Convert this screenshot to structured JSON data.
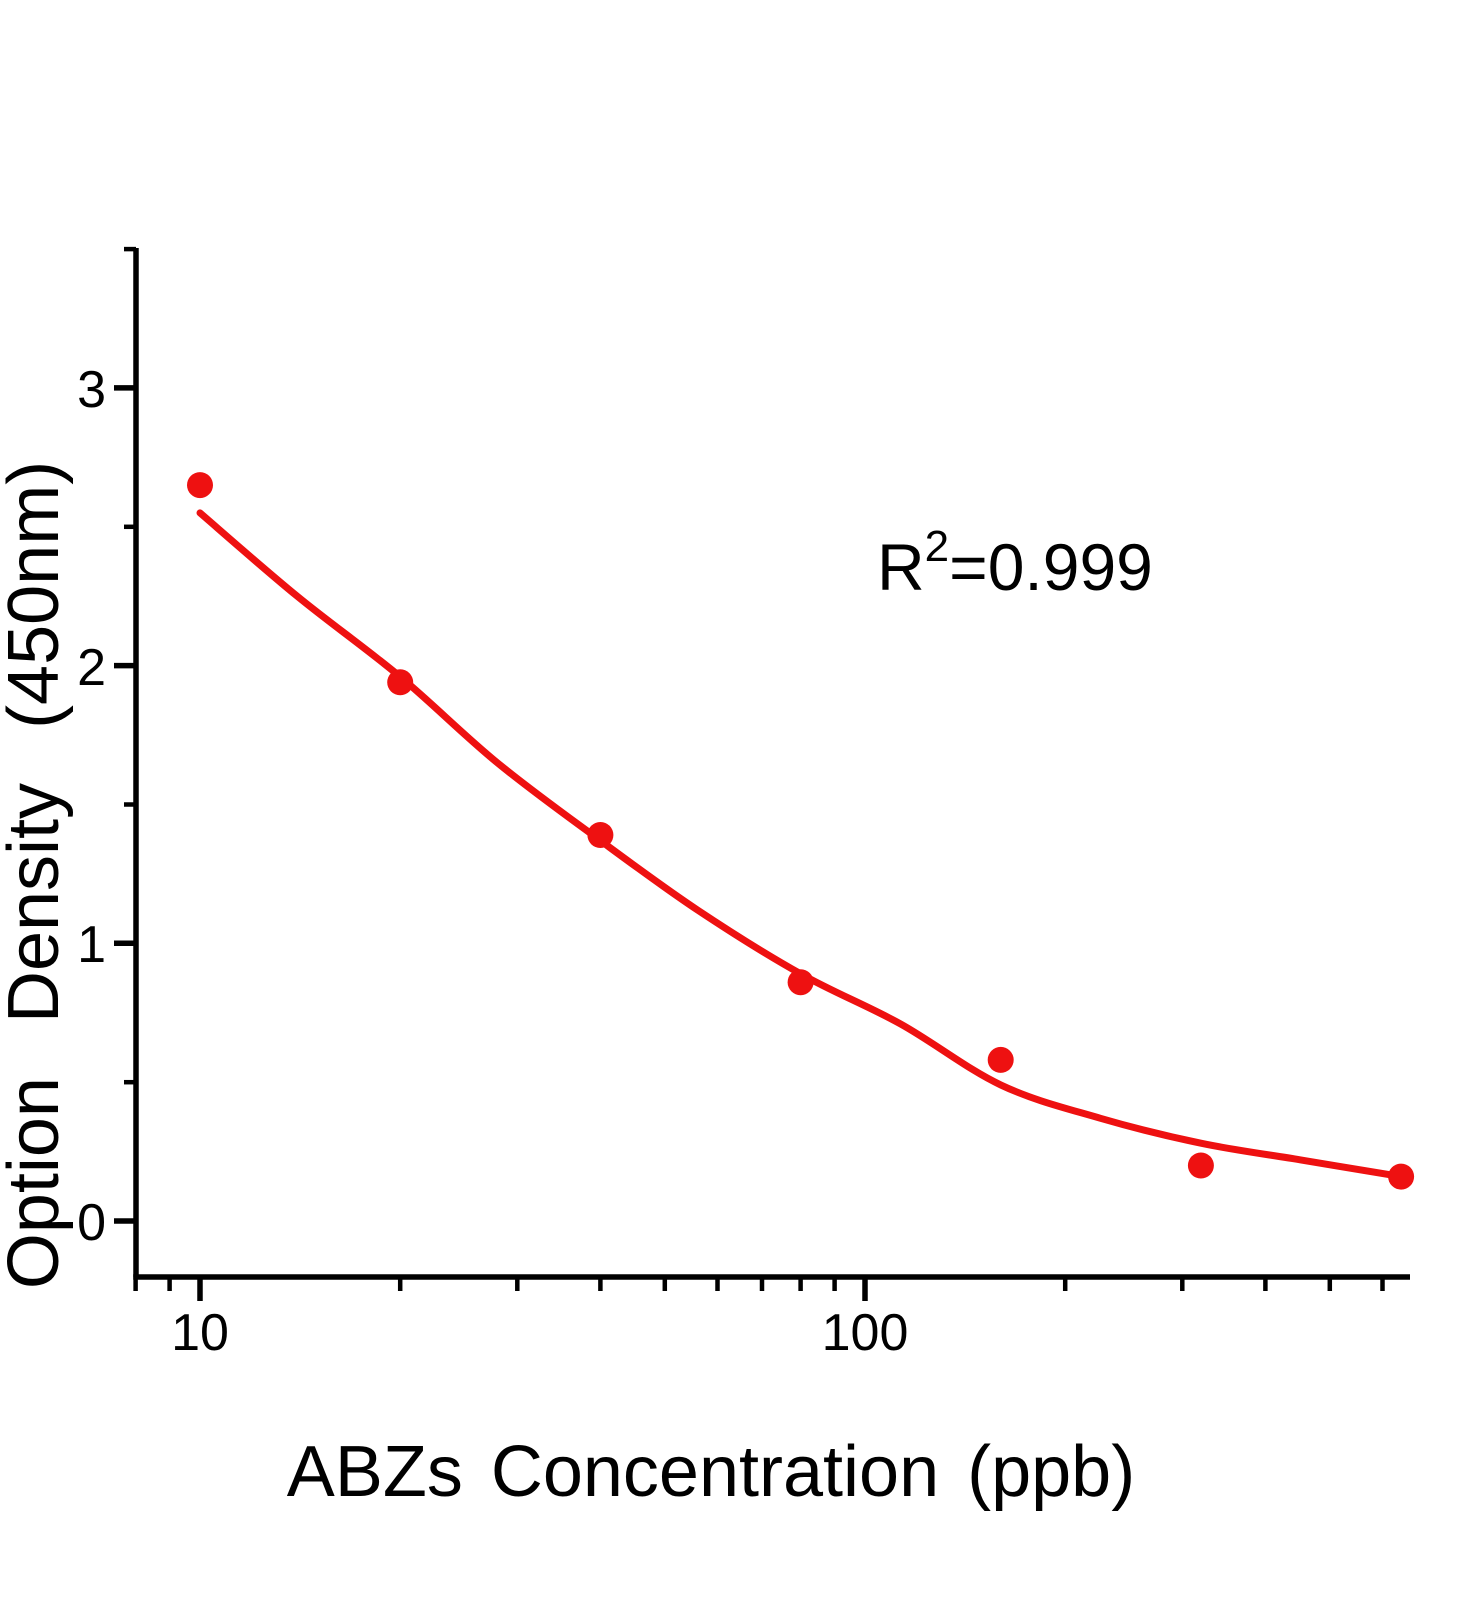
{
  "chart_data": {
    "type": "scatter",
    "title": "",
    "xlabel": "ABZs Concentration (ppb)",
    "ylabel": "Option Density (450nm)",
    "annotation": {
      "text": "R²=0.999",
      "base": "R",
      "sup": "2",
      "rest": "=0.999"
    },
    "xscale": "log",
    "xlim": [
      8,
      660
    ],
    "ylim": [
      -0.2,
      3.5
    ],
    "grid": false,
    "legend": "none",
    "marker_color": "#ee1111",
    "line_color": "#ee1111",
    "axis_color": "#000000",
    "background_color": "#ffffff",
    "x": [
      10,
      20,
      40,
      80,
      160,
      320,
      640
    ],
    "y": [
      2.65,
      1.94,
      1.39,
      0.86,
      0.58,
      0.2,
      0.16
    ],
    "fit_curve": {
      "x": [
        10,
        14,
        20,
        28,
        40,
        56,
        80,
        113,
        160,
        226,
        320,
        452,
        640
      ],
      "y": [
        2.55,
        2.25,
        1.96,
        1.65,
        1.37,
        1.12,
        0.89,
        0.71,
        0.49,
        0.37,
        0.28,
        0.22,
        0.16
      ]
    },
    "x_axis": {
      "major_ticks": [
        10,
        100
      ],
      "major_tick_labels": [
        "10",
        "100"
      ],
      "minor_ticks": [
        8,
        9,
        20,
        30,
        40,
        50,
        60,
        70,
        80,
        90,
        200,
        300,
        400,
        500,
        600
      ]
    },
    "y_axis": {
      "major_ticks": [
        3,
        2,
        1,
        0
      ],
      "major_tick_labels": [
        "3",
        "2",
        "1",
        "0"
      ],
      "minor_ticks": [
        3.5,
        2.5,
        1.5,
        0.5
      ]
    }
  }
}
